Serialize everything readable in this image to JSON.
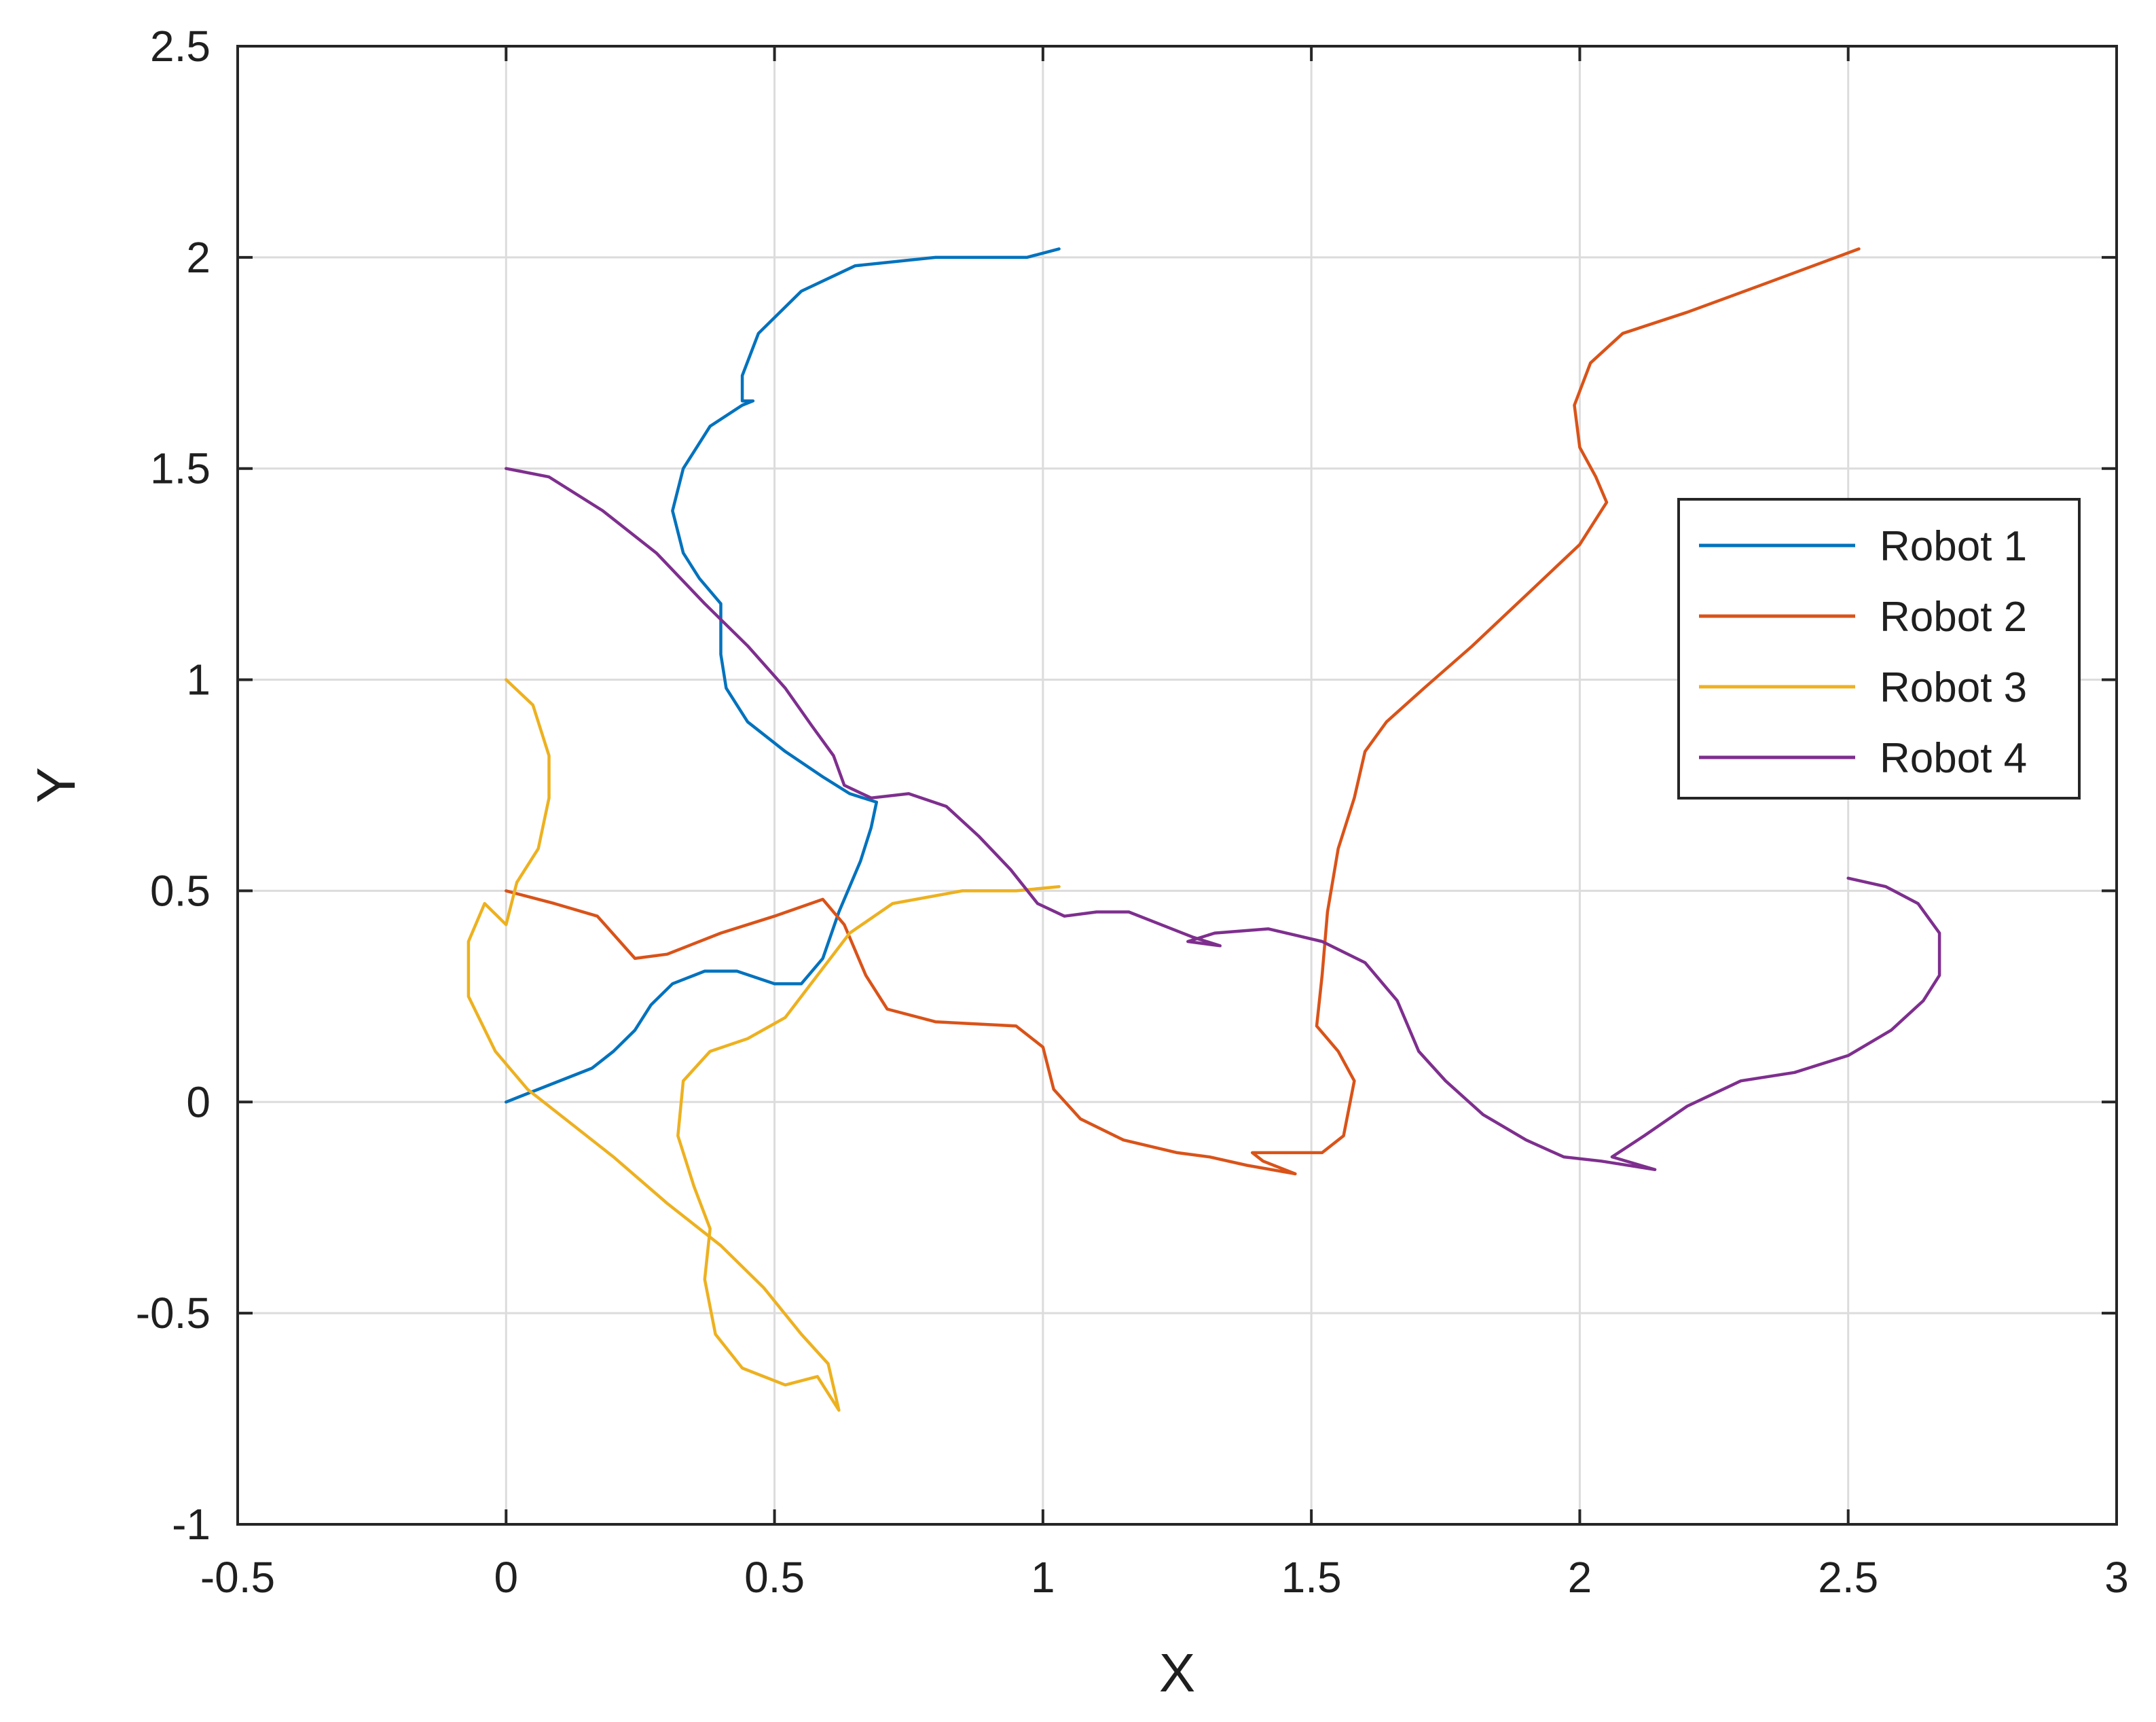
{
  "chart_data": {
    "type": "line",
    "title": "",
    "xlabel": "X",
    "ylabel": "Y",
    "xlim": [
      -0.5,
      3
    ],
    "ylim": [
      -1,
      2.5
    ],
    "xticks": [
      -0.5,
      0,
      0.5,
      1,
      1.5,
      2,
      2.5,
      3
    ],
    "xtick_labels": [
      "-0.5",
      "0",
      "0.5",
      "1",
      "1.5",
      "2",
      "2.5",
      "3"
    ],
    "yticks": [
      -1,
      -0.5,
      0,
      0.5,
      1,
      1.5,
      2,
      2.5
    ],
    "ytick_labels": [
      "-1",
      "-0.5",
      "0",
      "0.5",
      "1",
      "1.5",
      "2",
      "2.5"
    ],
    "grid": true,
    "legend_position": "right",
    "series": [
      {
        "name": "Robot 1",
        "color": "#0072BD",
        "points": [
          [
            0.0,
            0.0
          ],
          [
            0.08,
            0.04
          ],
          [
            0.16,
            0.08
          ],
          [
            0.2,
            0.12
          ],
          [
            0.24,
            0.17
          ],
          [
            0.27,
            0.23
          ],
          [
            0.31,
            0.28
          ],
          [
            0.37,
            0.31
          ],
          [
            0.43,
            0.31
          ],
          [
            0.5,
            0.28
          ],
          [
            0.55,
            0.28
          ],
          [
            0.59,
            0.34
          ],
          [
            0.62,
            0.45
          ],
          [
            0.66,
            0.57
          ],
          [
            0.68,
            0.65
          ],
          [
            0.69,
            0.71
          ],
          [
            0.64,
            0.73
          ],
          [
            0.59,
            0.77
          ],
          [
            0.52,
            0.83
          ],
          [
            0.45,
            0.9
          ],
          [
            0.41,
            0.98
          ],
          [
            0.4,
            1.06
          ],
          [
            0.4,
            1.18
          ],
          [
            0.36,
            1.24
          ],
          [
            0.33,
            1.3
          ],
          [
            0.31,
            1.4
          ],
          [
            0.33,
            1.5
          ],
          [
            0.38,
            1.6
          ],
          [
            0.44,
            1.65
          ],
          [
            0.46,
            1.66
          ],
          [
            0.44,
            1.66
          ],
          [
            0.44,
            1.72
          ],
          [
            0.47,
            1.82
          ],
          [
            0.55,
            1.92
          ],
          [
            0.65,
            1.98
          ],
          [
            0.8,
            2.0
          ],
          [
            0.97,
            2.0
          ],
          [
            1.03,
            2.02
          ]
        ]
      },
      {
        "name": "Robot 2",
        "color": "#D95319",
        "points": [
          [
            0.0,
            0.5
          ],
          [
            0.09,
            0.47
          ],
          [
            0.17,
            0.44
          ],
          [
            0.24,
            0.34
          ],
          [
            0.3,
            0.35
          ],
          [
            0.4,
            0.4
          ],
          [
            0.5,
            0.44
          ],
          [
            0.59,
            0.48
          ],
          [
            0.63,
            0.42
          ],
          [
            0.67,
            0.3
          ],
          [
            0.71,
            0.22
          ],
          [
            0.8,
            0.19
          ],
          [
            0.95,
            0.18
          ],
          [
            1.0,
            0.13
          ],
          [
            1.02,
            0.03
          ],
          [
            1.07,
            -0.04
          ],
          [
            1.15,
            -0.09
          ],
          [
            1.25,
            -0.12
          ],
          [
            1.31,
            -0.13
          ],
          [
            1.38,
            -0.15
          ],
          [
            1.47,
            -0.17
          ],
          [
            1.41,
            -0.14
          ],
          [
            1.39,
            -0.12
          ],
          [
            1.45,
            -0.12
          ],
          [
            1.52,
            -0.12
          ],
          [
            1.56,
            -0.08
          ],
          [
            1.58,
            0.05
          ],
          [
            1.55,
            0.12
          ],
          [
            1.51,
            0.18
          ],
          [
            1.52,
            0.3
          ],
          [
            1.53,
            0.45
          ],
          [
            1.55,
            0.6
          ],
          [
            1.58,
            0.72
          ],
          [
            1.6,
            0.83
          ],
          [
            1.64,
            0.9
          ],
          [
            1.71,
            0.98
          ],
          [
            1.8,
            1.08
          ],
          [
            1.9,
            1.2
          ],
          [
            2.0,
            1.32
          ],
          [
            2.05,
            1.42
          ],
          [
            2.03,
            1.48
          ],
          [
            2.0,
            1.55
          ],
          [
            1.99,
            1.65
          ],
          [
            2.02,
            1.75
          ],
          [
            2.08,
            1.82
          ],
          [
            2.2,
            1.87
          ],
          [
            2.35,
            1.94
          ],
          [
            2.52,
            2.02
          ]
        ]
      },
      {
        "name": "Robot 3",
        "color": "#EDB120",
        "points": [
          [
            0.0,
            1.0
          ],
          [
            0.05,
            0.94
          ],
          [
            0.08,
            0.82
          ],
          [
            0.08,
            0.72
          ],
          [
            0.06,
            0.6
          ],
          [
            0.02,
            0.52
          ],
          [
            0.0,
            0.42
          ],
          [
            -0.04,
            0.47
          ],
          [
            -0.07,
            0.38
          ],
          [
            -0.07,
            0.25
          ],
          [
            -0.02,
            0.12
          ],
          [
            0.04,
            0.03
          ],
          [
            0.12,
            -0.05
          ],
          [
            0.2,
            -0.13
          ],
          [
            0.3,
            -0.24
          ],
          [
            0.4,
            -0.34
          ],
          [
            0.48,
            -0.44
          ],
          [
            0.55,
            -0.55
          ],
          [
            0.6,
            -0.62
          ],
          [
            0.62,
            -0.73
          ],
          [
            0.58,
            -0.65
          ],
          [
            0.52,
            -0.67
          ],
          [
            0.44,
            -0.63
          ],
          [
            0.39,
            -0.55
          ],
          [
            0.37,
            -0.42
          ],
          [
            0.38,
            -0.3
          ],
          [
            0.35,
            -0.2
          ],
          [
            0.32,
            -0.08
          ],
          [
            0.33,
            0.05
          ],
          [
            0.38,
            0.12
          ],
          [
            0.45,
            0.15
          ],
          [
            0.52,
            0.2
          ],
          [
            0.58,
            0.3
          ],
          [
            0.64,
            0.4
          ],
          [
            0.72,
            0.47
          ],
          [
            0.85,
            0.5
          ],
          [
            0.95,
            0.5
          ],
          [
            1.03,
            0.51
          ]
        ]
      },
      {
        "name": "Robot 4",
        "color": "#7E2F8E",
        "points": [
          [
            0.0,
            1.5
          ],
          [
            0.08,
            1.48
          ],
          [
            0.18,
            1.4
          ],
          [
            0.28,
            1.3
          ],
          [
            0.37,
            1.18
          ],
          [
            0.45,
            1.08
          ],
          [
            0.52,
            0.98
          ],
          [
            0.57,
            0.89
          ],
          [
            0.61,
            0.82
          ],
          [
            0.63,
            0.75
          ],
          [
            0.68,
            0.72
          ],
          [
            0.75,
            0.73
          ],
          [
            0.82,
            0.7
          ],
          [
            0.88,
            0.63
          ],
          [
            0.94,
            0.55
          ],
          [
            0.99,
            0.47
          ],
          [
            1.04,
            0.44
          ],
          [
            1.1,
            0.45
          ],
          [
            1.16,
            0.45
          ],
          [
            1.22,
            0.42
          ],
          [
            1.28,
            0.39
          ],
          [
            1.33,
            0.37
          ],
          [
            1.27,
            0.38
          ],
          [
            1.32,
            0.4
          ],
          [
            1.42,
            0.41
          ],
          [
            1.52,
            0.38
          ],
          [
            1.6,
            0.33
          ],
          [
            1.66,
            0.24
          ],
          [
            1.7,
            0.12
          ],
          [
            1.75,
            0.05
          ],
          [
            1.82,
            -0.03
          ],
          [
            1.9,
            -0.09
          ],
          [
            1.97,
            -0.13
          ],
          [
            2.04,
            -0.14
          ],
          [
            2.14,
            -0.16
          ],
          [
            2.06,
            -0.13
          ],
          [
            2.12,
            -0.08
          ],
          [
            2.2,
            -0.01
          ],
          [
            2.3,
            0.05
          ],
          [
            2.4,
            0.07
          ],
          [
            2.5,
            0.11
          ],
          [
            2.58,
            0.17
          ],
          [
            2.64,
            0.24
          ],
          [
            2.67,
            0.3
          ],
          [
            2.67,
            0.4
          ],
          [
            2.63,
            0.47
          ],
          [
            2.57,
            0.51
          ],
          [
            2.5,
            0.53
          ]
        ]
      }
    ]
  }
}
